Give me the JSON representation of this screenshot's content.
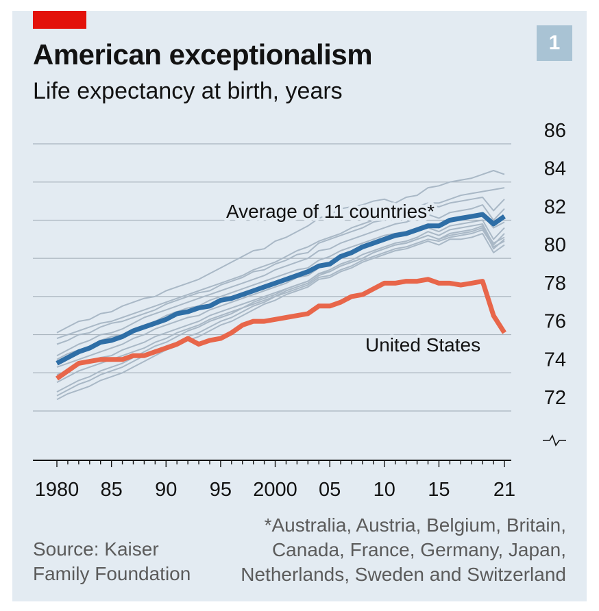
{
  "header": {
    "title": "American exceptionalism",
    "subtitle": "Life expectancy at birth, years",
    "chart_number": "1"
  },
  "footer": {
    "source_lines": [
      "Source: Kaiser",
      "Family Foundation"
    ],
    "footnote_lines": [
      "*Australia, Austria, Belgium, Britain,",
      "Canada, France, Germany, Japan,",
      "Netherlands, Sweden and Switzerland"
    ]
  },
  "colors": {
    "background": "#e3ebf2",
    "average": "#2e6ea6",
    "united_states": "#e8664a",
    "countries": "#a9b8c6",
    "grid": "#a9b4be",
    "accent_tag": "#e3120b",
    "badge": "#a9c3d4"
  },
  "chart_data": {
    "type": "line",
    "title": "American exceptionalism",
    "subtitle": "Life expectancy at birth, years",
    "x_tick_labels": [
      "1980",
      "85",
      "90",
      "95",
      "2000",
      "05",
      "10",
      "15",
      "21"
    ],
    "x_tick_values": [
      1980,
      1985,
      1990,
      1995,
      2000,
      2005,
      2010,
      2015,
      2021
    ],
    "y_ticks": [
      72,
      74,
      76,
      78,
      80,
      82,
      84,
      86
    ],
    "ylim": [
      70,
      86
    ],
    "xlim": [
      1980,
      2021
    ],
    "y_axis_break": true,
    "grid": true,
    "x": [
      1980,
      1981,
      1982,
      1983,
      1984,
      1985,
      1986,
      1987,
      1988,
      1989,
      1990,
      1991,
      1992,
      1993,
      1994,
      1995,
      1996,
      1997,
      1998,
      1999,
      2000,
      2001,
      2002,
      2003,
      2004,
      2005,
      2006,
      2007,
      2008,
      2009,
      2010,
      2011,
      2012,
      2013,
      2014,
      2015,
      2016,
      2017,
      2018,
      2019,
      2020,
      2021
    ],
    "series": [
      {
        "name": "Average of 11 countries*",
        "role": "average",
        "values": [
          74.5,
          74.8,
          75.1,
          75.3,
          75.6,
          75.7,
          75.9,
          76.2,
          76.4,
          76.6,
          76.8,
          77.1,
          77.2,
          77.4,
          77.5,
          77.8,
          77.9,
          78.1,
          78.3,
          78.5,
          78.7,
          78.9,
          79.1,
          79.3,
          79.6,
          79.7,
          80.1,
          80.3,
          80.6,
          80.8,
          81.0,
          81.2,
          81.3,
          81.5,
          81.7,
          81.7,
          82.0,
          82.1,
          82.2,
          82.3,
          81.8,
          82.2
        ]
      },
      {
        "name": "United States",
        "role": "us",
        "values": [
          73.7,
          74.1,
          74.5,
          74.6,
          74.7,
          74.7,
          74.7,
          74.9,
          74.9,
          75.1,
          75.3,
          75.5,
          75.8,
          75.5,
          75.7,
          75.8,
          76.1,
          76.5,
          76.7,
          76.7,
          76.8,
          76.9,
          77.0,
          77.1,
          77.5,
          77.5,
          77.7,
          78.0,
          78.1,
          78.4,
          78.7,
          78.7,
          78.8,
          78.8,
          78.9,
          78.7,
          78.7,
          78.6,
          78.7,
          78.8,
          77.0,
          76.1
        ]
      },
      {
        "name": "",
        "role": "country",
        "values": [
          76.1,
          76.4,
          76.7,
          76.8,
          77.1,
          77.2,
          77.5,
          77.7,
          77.9,
          78.0,
          78.3,
          78.5,
          78.7,
          78.9,
          79.2,
          79.5,
          79.8,
          80.1,
          80.4,
          80.5,
          80.9,
          81.1,
          81.4,
          81.7,
          82.1,
          82.3,
          82.6,
          82.7,
          82.8,
          83.0,
          83.1,
          82.9,
          83.2,
          83.3,
          83.7,
          83.8,
          84.0,
          84.1,
          84.2,
          84.4,
          84.6,
          84.4
        ]
      },
      {
        "name": "",
        "role": "country",
        "values": [
          75.8,
          76.0,
          76.2,
          76.4,
          76.6,
          76.7,
          76.9,
          77.1,
          77.3,
          77.5,
          77.7,
          77.9,
          78.1,
          78.3,
          78.5,
          78.7,
          78.9,
          79.1,
          79.4,
          79.6,
          79.8,
          80.1,
          80.4,
          80.6,
          80.9,
          81.1,
          81.3,
          81.6,
          81.8,
          82.0,
          82.2,
          82.3,
          82.5,
          82.7,
          82.9,
          82.9,
          83.1,
          83.3,
          83.4,
          83.5,
          83.6,
          83.7
        ]
      },
      {
        "name": "",
        "role": "country",
        "values": [
          75.5,
          75.7,
          76.0,
          76.1,
          76.4,
          76.6,
          76.7,
          76.9,
          77.1,
          77.3,
          77.6,
          77.8,
          78.0,
          78.2,
          78.3,
          78.6,
          78.8,
          79.0,
          79.3,
          79.4,
          79.7,
          79.9,
          80.2,
          80.3,
          80.8,
          81.0,
          81.2,
          81.4,
          81.6,
          81.9,
          82.0,
          82.3,
          82.4,
          82.6,
          82.8,
          82.7,
          82.9,
          83.0,
          83.1,
          83.2,
          82.5,
          83.1
        ]
      },
      {
        "name": "",
        "role": "country",
        "values": [
          74.9,
          75.2,
          75.5,
          75.7,
          76.0,
          76.1,
          76.3,
          76.6,
          76.9,
          77.1,
          77.3,
          77.5,
          77.7,
          77.9,
          78.1,
          78.3,
          78.5,
          78.7,
          78.9,
          79.1,
          79.4,
          79.6,
          79.8,
          80.0,
          80.4,
          80.5,
          80.8,
          81.0,
          81.2,
          81.4,
          81.6,
          81.8,
          81.9,
          82.1,
          82.3,
          82.1,
          82.4,
          82.5,
          82.6,
          82.8,
          82.0,
          82.6
        ]
      },
      {
        "name": "",
        "role": "country",
        "values": [
          74.7,
          75.0,
          75.2,
          75.4,
          75.7,
          75.9,
          76.0,
          76.3,
          76.5,
          76.7,
          77.0,
          77.2,
          77.4,
          77.5,
          77.8,
          78.0,
          78.2,
          78.4,
          78.6,
          78.8,
          79.0,
          79.2,
          79.4,
          79.5,
          79.9,
          80.1,
          80.4,
          80.6,
          80.8,
          81.0,
          81.2,
          81.3,
          81.4,
          81.6,
          81.8,
          81.6,
          81.9,
          82.0,
          82.1,
          82.3,
          81.6,
          81.9
        ]
      },
      {
        "name": "",
        "role": "country",
        "values": [
          74.3,
          74.5,
          74.7,
          74.9,
          75.1,
          75.3,
          75.5,
          75.8,
          76.0,
          76.3,
          76.5,
          76.7,
          76.9,
          77.0,
          77.3,
          77.5,
          77.7,
          77.9,
          78.1,
          78.3,
          78.5,
          78.7,
          79.0,
          79.1,
          79.5,
          79.7,
          80.0,
          80.2,
          80.5,
          80.7,
          80.9,
          81.1,
          81.2,
          81.4,
          81.6,
          81.4,
          81.7,
          81.8,
          81.9,
          82.0,
          81.0,
          81.6
        ]
      },
      {
        "name": "",
        "role": "country",
        "values": [
          73.9,
          74.1,
          74.4,
          74.6,
          74.8,
          74.9,
          75.2,
          75.4,
          75.6,
          75.9,
          76.1,
          76.3,
          76.5,
          76.7,
          77.0,
          77.2,
          77.4,
          77.6,
          77.8,
          78.0,
          78.2,
          78.4,
          78.6,
          78.8,
          79.2,
          79.4,
          79.7,
          79.9,
          80.2,
          80.4,
          80.6,
          80.8,
          80.9,
          81.1,
          81.4,
          81.2,
          81.5,
          81.6,
          81.7,
          81.8,
          80.7,
          81.3
        ]
      },
      {
        "name": "",
        "role": "country",
        "values": [
          73.5,
          73.8,
          74.1,
          74.3,
          74.5,
          74.7,
          74.9,
          75.1,
          75.3,
          75.6,
          75.8,
          76.1,
          76.3,
          76.5,
          76.8,
          77.0,
          77.2,
          77.4,
          77.6,
          77.8,
          78.0,
          78.3,
          78.5,
          78.7,
          79.1,
          79.3,
          79.6,
          79.8,
          80.0,
          80.3,
          80.5,
          80.7,
          80.8,
          81.0,
          81.2,
          81.0,
          81.3,
          81.4,
          81.5,
          81.7,
          80.5,
          81.0
        ]
      },
      {
        "name": "",
        "role": "country",
        "values": [
          73.0,
          73.3,
          73.6,
          73.8,
          74.1,
          74.3,
          74.5,
          74.8,
          75.1,
          75.4,
          75.6,
          75.9,
          76.2,
          76.4,
          76.7,
          76.9,
          77.1,
          77.4,
          77.7,
          77.9,
          78.1,
          78.4,
          78.6,
          78.8,
          79.2,
          79.3,
          79.6,
          79.8,
          80.0,
          80.3,
          80.5,
          80.7,
          80.8,
          81.0,
          81.2,
          81.0,
          81.2,
          81.3,
          81.4,
          81.6,
          80.8,
          81.1
        ]
      },
      {
        "name": "",
        "role": "country",
        "values": [
          72.8,
          73.1,
          73.4,
          73.6,
          73.9,
          74.1,
          74.3,
          74.6,
          74.9,
          75.1,
          75.4,
          75.6,
          75.9,
          76.1,
          76.4,
          76.7,
          76.9,
          77.2,
          77.5,
          77.7,
          78.0,
          78.2,
          78.4,
          78.6,
          79.0,
          79.1,
          79.4,
          79.6,
          79.9,
          80.1,
          80.3,
          80.5,
          80.6,
          80.8,
          81.0,
          80.9,
          81.1,
          81.2,
          81.3,
          81.5,
          80.6,
          80.9
        ]
      },
      {
        "name": "",
        "role": "country",
        "values": [
          72.6,
          72.9,
          73.1,
          73.3,
          73.6,
          73.8,
          74.0,
          74.3,
          74.6,
          74.9,
          75.2,
          75.4,
          75.7,
          75.9,
          76.2,
          76.5,
          76.7,
          77.0,
          77.3,
          77.6,
          77.8,
          78.1,
          78.3,
          78.5,
          78.9,
          79.0,
          79.3,
          79.5,
          79.8,
          80.0,
          80.2,
          80.4,
          80.5,
          80.7,
          80.9,
          80.7,
          81.0,
          81.0,
          81.1,
          81.3,
          80.3,
          80.7
        ]
      }
    ],
    "annotations": [
      "Average of 11 countries*",
      "United States"
    ]
  }
}
